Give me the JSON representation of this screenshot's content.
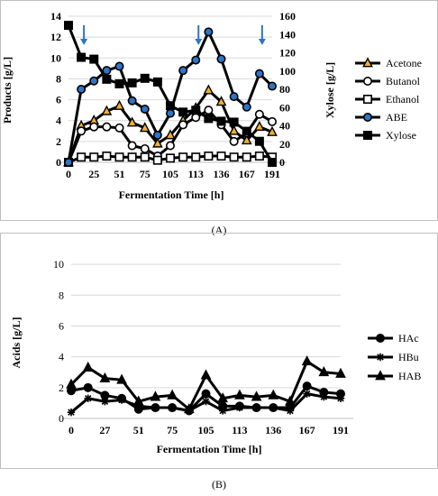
{
  "panel_labels": [
    "(A)",
    "(B)"
  ],
  "chart_data": [
    {
      "type": "line",
      "panel": "(A)",
      "xlabel": "Fermentation Time [h]",
      "ylabel": "Products [g/L]",
      "y2label": "Xylose [g/L]",
      "ylim": [
        0,
        14
      ],
      "y2lim": [
        0,
        160
      ],
      "yticks": [
        0,
        2,
        4,
        6,
        8,
        10,
        12,
        14
      ],
      "y2ticks": [
        0,
        20,
        40,
        60,
        80,
        100,
        120,
        140,
        160
      ],
      "xticks": [
        "0",
        "25",
        "51",
        "75",
        "105",
        "113",
        "136",
        "167",
        "191"
      ],
      "x": [
        0,
        13,
        25,
        38,
        51,
        63,
        75,
        90,
        105,
        109,
        113,
        125,
        136,
        148,
        160,
        172,
        191
      ],
      "series": [
        {
          "name": "Acetone",
          "axis": "left",
          "marker": "triangle",
          "color": "#f0b030",
          "values": [
            0,
            3.5,
            4.0,
            4.9,
            5.4,
            3.8,
            3.3,
            1.8,
            2.6,
            4.0,
            5.2,
            6.9,
            5.8,
            3.0,
            2.1,
            3.4,
            2.9
          ]
        },
        {
          "name": "Butanol",
          "axis": "left",
          "marker": "circle-open",
          "color": "#ffffff",
          "values": [
            0,
            3.0,
            3.4,
            3.4,
            3.3,
            1.6,
            1.3,
            0.6,
            1.6,
            3.6,
            4.3,
            5.0,
            3.6,
            2.0,
            2.8,
            4.6,
            3.9
          ]
        },
        {
          "name": "Ethanol",
          "axis": "left",
          "marker": "square-open",
          "color": "#ffffff",
          "values": [
            0,
            0.5,
            0.5,
            0.6,
            0.5,
            0.5,
            0.5,
            0.2,
            0.4,
            0.5,
            0.5,
            0.6,
            0.6,
            0.5,
            0.5,
            0.6,
            0.5
          ]
        },
        {
          "name": "ABE",
          "axis": "left",
          "marker": "circle",
          "color": "#2e75c6",
          "values": [
            0,
            7.0,
            7.8,
            8.8,
            9.2,
            5.9,
            5.1,
            2.6,
            4.7,
            8.8,
            9.8,
            12.5,
            9.9,
            6.3,
            5.3,
            8.5,
            7.3
          ]
        },
        {
          "name": "Xylose",
          "axis": "right",
          "marker": "square",
          "color": "#000000",
          "values": [
            150,
            115,
            113,
            91,
            86,
            87,
            92,
            88,
            62,
            55,
            57,
            48,
            45,
            44,
            34,
            23,
            0
          ]
        }
      ],
      "arrows_at_x": [
        13,
        113,
        172
      ]
    },
    {
      "type": "line",
      "panel": "(B)",
      "xlabel": "Fermentation Time [h]",
      "ylabel": "Acids [g/L]",
      "ylim": [
        0,
        11
      ],
      "yticks": [
        0,
        2,
        4,
        6,
        8,
        10
      ],
      "xticks": [
        "0",
        "27",
        "51",
        "75",
        "105",
        "113",
        "136",
        "167",
        "191"
      ],
      "x": [
        0,
        13,
        27,
        38,
        51,
        63,
        75,
        90,
        105,
        109,
        113,
        125,
        136,
        148,
        167,
        179,
        191
      ],
      "series": [
        {
          "name": "HAc",
          "marker": "circle",
          "color": "#000000",
          "values": [
            1.8,
            2.0,
            1.5,
            1.3,
            0.6,
            0.7,
            0.7,
            0.5,
            1.6,
            0.8,
            0.8,
            0.7,
            0.7,
            0.7,
            2.1,
            1.7,
            1.6
          ]
        },
        {
          "name": "HBu",
          "marker": "star",
          "color": "#000000",
          "values": [
            0.4,
            1.3,
            1.1,
            1.2,
            0.8,
            0.7,
            0.7,
            0.5,
            1.1,
            0.5,
            0.7,
            0.7,
            0.7,
            0.5,
            1.6,
            1.4,
            1.3
          ]
        },
        {
          "name": "HAB",
          "marker": "triangle",
          "color": "#000000",
          "values": [
            2.2,
            3.3,
            2.6,
            2.5,
            1.1,
            1.4,
            1.5,
            0.6,
            2.8,
            1.3,
            1.5,
            1.4,
            1.5,
            1.1,
            3.7,
            3.0,
            2.9
          ]
        }
      ]
    }
  ]
}
